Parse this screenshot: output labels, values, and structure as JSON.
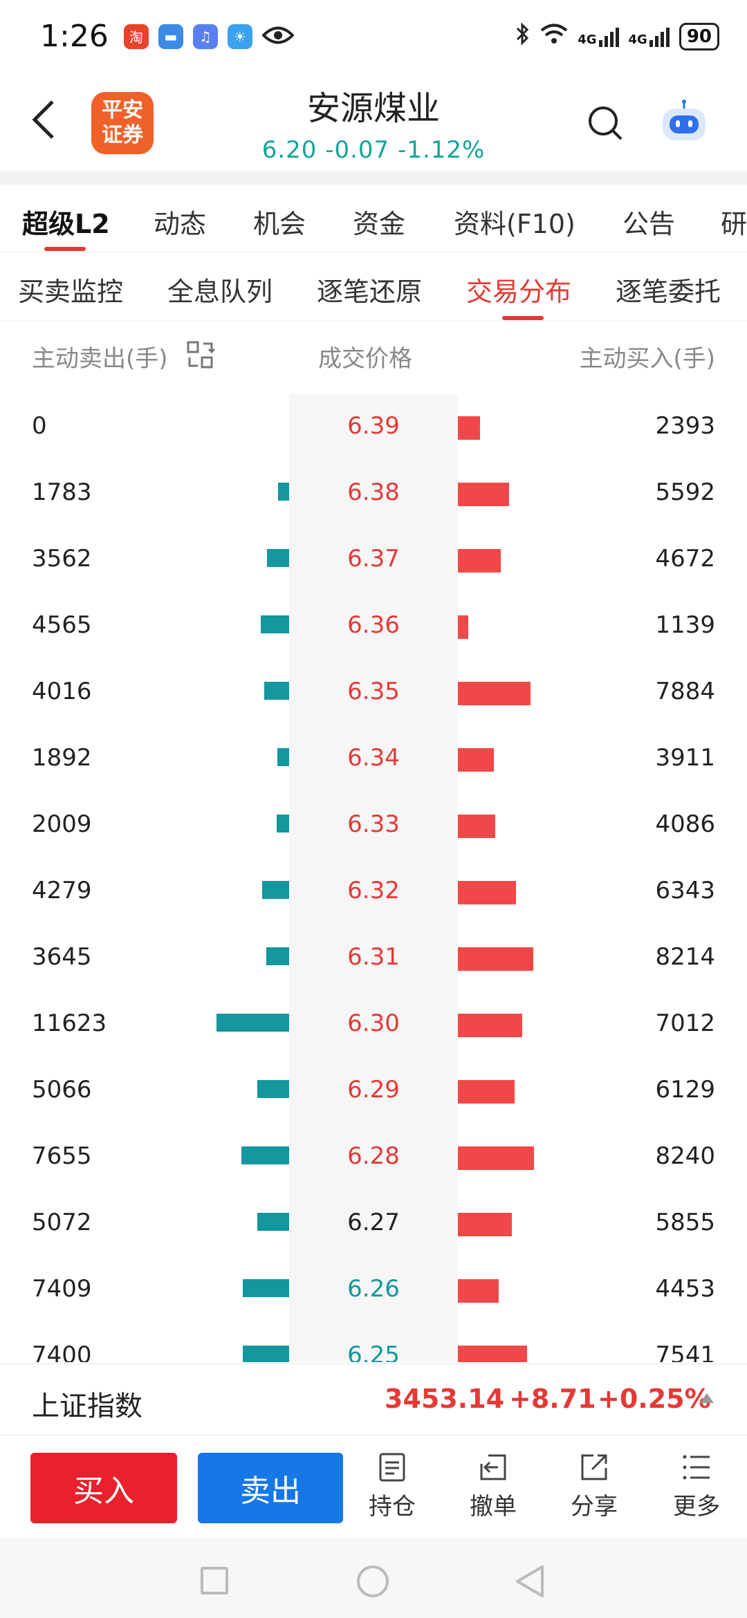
{
  "status_bar": {
    "time": "1:26",
    "network": "4G",
    "battery": "90",
    "icons": [
      "taobao-icon",
      "message-icon",
      "music-icon",
      "weather-icon",
      "eye-icon",
      "bluetooth-icon",
      "wifi-icon",
      "signal-icon"
    ]
  },
  "header": {
    "logo_text": "平安证券",
    "logo_color": "#f0612a",
    "title": "安源煤业",
    "quote": "6.20  -0.07  -1.12%",
    "quote_color": "#14a39a"
  },
  "main_tabs": [
    "超级L2",
    "动态",
    "机会",
    "资金",
    "资料(F10)",
    "公告",
    "研"
  ],
  "main_tab_active": "超级L2",
  "sub_tabs": [
    "买卖监控",
    "全息队列",
    "逐笔还原",
    "交易分布",
    "逐笔委托"
  ],
  "sub_tab_active": "交易分布",
  "columns": {
    "sell": "主动卖出(手)",
    "price": "成交价格",
    "buy": "主动买入(手)"
  },
  "colors": {
    "up": "#e53935",
    "down": "#14979e",
    "flat": "#222222",
    "buy_bar": "#f04848",
    "sell_bar": "#14979e"
  },
  "distribution": [
    {
      "sell": "0",
      "price": "6.39",
      "buy": "2393",
      "dir": "up"
    },
    {
      "sell": "1783",
      "price": "6.38",
      "buy": "5592",
      "dir": "up"
    },
    {
      "sell": "3562",
      "price": "6.37",
      "buy": "4672",
      "dir": "up"
    },
    {
      "sell": "4565",
      "price": "6.36",
      "buy": "1139",
      "dir": "up"
    },
    {
      "sell": "4016",
      "price": "6.35",
      "buy": "7884",
      "dir": "up"
    },
    {
      "sell": "1892",
      "price": "6.34",
      "buy": "3911",
      "dir": "up"
    },
    {
      "sell": "2009",
      "price": "6.33",
      "buy": "4086",
      "dir": "up"
    },
    {
      "sell": "4279",
      "price": "6.32",
      "buy": "6343",
      "dir": "up"
    },
    {
      "sell": "3645",
      "price": "6.31",
      "buy": "8214",
      "dir": "up"
    },
    {
      "sell": "11623",
      "price": "6.30",
      "buy": "7012",
      "dir": "up"
    },
    {
      "sell": "5066",
      "price": "6.29",
      "buy": "6129",
      "dir": "up"
    },
    {
      "sell": "7655",
      "price": "6.28",
      "buy": "8240",
      "dir": "up"
    },
    {
      "sell": "5072",
      "price": "6.27",
      "buy": "5855",
      "dir": "flat"
    },
    {
      "sell": "7409",
      "price": "6.26",
      "buy": "4453",
      "dir": "down"
    },
    {
      "sell": "7400",
      "price": "6.25",
      "buy": "7541",
      "dir": "down"
    }
  ],
  "index": {
    "name": "上证指数",
    "value": "3453.14",
    "change": "+8.71",
    "percent": "+0.25%"
  },
  "actions": {
    "buy": "买入",
    "sell": "卖出",
    "position": "持仓",
    "cancel": "撤单",
    "share": "分享",
    "more": "更多"
  }
}
